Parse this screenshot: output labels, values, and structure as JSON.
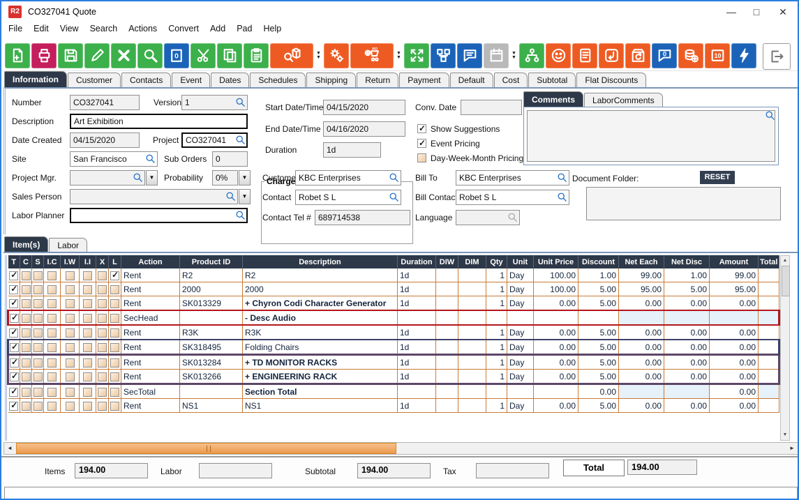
{
  "window": {
    "title": "CO327041 Quote",
    "badge": "R2",
    "minimize": "—",
    "maximize": "□",
    "close": "✕"
  },
  "menu": {
    "items": [
      "File",
      "Edit",
      "View",
      "Search",
      "Actions",
      "Convert",
      "Add",
      "Pad",
      "Help"
    ]
  },
  "toolbar": {
    "buttons": [
      {
        "name": "new-document-icon",
        "color": "green"
      },
      {
        "name": "print-icon",
        "color": "crimson"
      },
      {
        "name": "save-icon",
        "color": "green"
      },
      {
        "name": "edit-pencil-icon",
        "color": "green"
      },
      {
        "name": "delete-x-icon",
        "color": "green"
      },
      {
        "name": "search-icon",
        "color": "green"
      },
      {
        "name": "duplicate-zero-icon",
        "color": "blue",
        "glyph": "0"
      },
      {
        "name": "cut-icon",
        "color": "green"
      },
      {
        "name": "copy-icon",
        "color": "green"
      },
      {
        "name": "paste-icon",
        "color": "green"
      },
      {
        "name": "product-search-icon",
        "color": "orange",
        "wide": true,
        "dropdown": true
      },
      {
        "name": "gears-icon",
        "color": "orange"
      },
      {
        "name": "add-po-cart-icon",
        "color": "orange",
        "wide": true,
        "dropdown": true,
        "glyph": "PO"
      },
      {
        "name": "expand-icon",
        "color": "green"
      },
      {
        "name": "workflow-icon",
        "color": "blue"
      },
      {
        "name": "comment-icon",
        "color": "blue"
      },
      {
        "name": "calendar-icon",
        "color": "gray",
        "dropdown": true
      },
      {
        "name": "org-tree-icon",
        "color": "green"
      },
      {
        "name": "smiley-icon",
        "color": "orange"
      },
      {
        "name": "notes-scroll-icon",
        "color": "orange"
      },
      {
        "name": "return-arrow-icon",
        "color": "orange"
      },
      {
        "name": "box-return-icon",
        "color": "orange"
      },
      {
        "name": "chat-zero-icon",
        "color": "blue",
        "glyph": "0"
      },
      {
        "name": "coins-add-icon",
        "color": "orange"
      },
      {
        "name": "vault-icon",
        "color": "orange",
        "glyph": "10"
      },
      {
        "name": "lightning-icon",
        "color": "blue"
      }
    ],
    "exit": {
      "name": "exit-icon"
    }
  },
  "tabs": {
    "items": [
      "Information",
      "Customer",
      "Contacts",
      "Event",
      "Dates",
      "Schedules",
      "Shipping",
      "Return",
      "Payment",
      "Default",
      "Cost",
      "Subtotal",
      "Flat Discounts"
    ],
    "selected": "Information"
  },
  "form": {
    "number": {
      "label": "Number",
      "value": "CO327041"
    },
    "version": {
      "label": "Version",
      "value": "1"
    },
    "description": {
      "label": "Description",
      "value": "Art Exhibition"
    },
    "date_created": {
      "label": "Date Created",
      "value": "04/15/2020"
    },
    "project": {
      "label": "Project",
      "value": "CO327041"
    },
    "site": {
      "label": "Site",
      "value": "San Francisco"
    },
    "sub_orders": {
      "label": "Sub Orders",
      "value": "0"
    },
    "project_mgr": {
      "label": "Project Mgr.",
      "value": ""
    },
    "probability": {
      "label": "Probability",
      "value": "0%"
    },
    "sales_person": {
      "label": "Sales Person",
      "value": ""
    },
    "labor_planner": {
      "label": "Labor Planner",
      "value": ""
    },
    "charge_duration": {
      "title": "Charge Duration",
      "start": {
        "label": "Start Date/Time",
        "value": "04/15/2020"
      },
      "end": {
        "label": "End Date/Time",
        "value": "04/16/2020"
      },
      "duration": {
        "label": "Duration",
        "value": "1d"
      }
    },
    "conv_date": {
      "label": "Conv. Date",
      "value": ""
    },
    "checkboxes": [
      {
        "label": "Show Suggestions",
        "checked": true
      },
      {
        "label": "Event Pricing",
        "checked": true
      },
      {
        "label": "Day-Week-Month Pricing",
        "checked": false
      }
    ],
    "customer": {
      "label": "Customer",
      "value": "KBC Enterprises"
    },
    "bill_to": {
      "label": "Bill To",
      "value": "KBC Enterprises"
    },
    "contact": {
      "label": "Contact",
      "value": "Robet S L"
    },
    "bill_contact": {
      "label": "Bill Contact",
      "value": "Robet S L"
    },
    "contact_tel": {
      "label": "Contact Tel #",
      "value": "689714538"
    },
    "language": {
      "label": "Language",
      "value": ""
    }
  },
  "comments": {
    "tabs": [
      "Comments",
      "LaborComments"
    ],
    "selected": "Comments",
    "value": ""
  },
  "document_folder": {
    "label": "Document Folder:",
    "reset_label": "RESET",
    "value": ""
  },
  "items_section": {
    "tabs": [
      "Item(s)",
      "Labor"
    ],
    "selected": "Item(s)"
  },
  "table": {
    "checkbox_columns": [
      "T",
      "C",
      "S",
      "I.C",
      "I.W",
      "I.I",
      "X",
      "L"
    ],
    "columns": [
      "Action",
      "Product ID",
      "Description",
      "Duration",
      "DIW",
      "DIM",
      "Qty",
      "Unit",
      "Unit Price",
      "Discount",
      "Net Each",
      "Net Disc",
      "Amount",
      "Total"
    ],
    "rows": [
      {
        "checks": [
          1,
          0,
          0,
          0,
          0,
          0,
          0,
          1
        ],
        "action": "Rent",
        "product": "R2",
        "desc": "R2",
        "bold": false,
        "duration": "1d",
        "diw": "",
        "dim": "",
        "qty": "1",
        "unit": "Day",
        "price": "100.00",
        "discount": "1.00",
        "net_each": "99.00",
        "net_disc": "1.00",
        "amount": "99.00",
        "total": "",
        "border": "",
        "muted": []
      },
      {
        "checks": [
          1,
          0,
          0,
          0,
          0,
          0,
          0,
          0
        ],
        "action": "Rent",
        "product": "2000",
        "desc": "2000",
        "bold": false,
        "duration": "1d",
        "diw": "",
        "dim": "",
        "qty": "1",
        "unit": "Day",
        "price": "100.00",
        "discount": "5.00",
        "net_each": "95.00",
        "net_disc": "5.00",
        "amount": "95.00",
        "total": "",
        "border": "",
        "muted": []
      },
      {
        "checks": [
          1,
          0,
          0,
          0,
          0,
          0,
          0,
          0
        ],
        "action": "Rent",
        "product": "SK013329",
        "desc": "+  Chyron Codi Character Generator",
        "bold": true,
        "duration": "1d",
        "diw": "",
        "dim": "",
        "qty": "1",
        "unit": "Day",
        "price": "0.00",
        "discount": "5.00",
        "net_each": "0.00",
        "net_disc": "0.00",
        "amount": "0.00",
        "total": "",
        "border": "",
        "muted": []
      },
      {
        "checks": [
          1,
          0,
          0,
          0,
          0,
          0,
          0,
          0
        ],
        "action": "SecHead",
        "product": "",
        "desc": "-  Desc Audio",
        "bold": true,
        "duration": "",
        "diw": "",
        "dim": "",
        "qty": "",
        "unit": "",
        "price": "",
        "discount": "",
        "net_each": "",
        "net_disc": "",
        "amount": "",
        "total": "",
        "border": "red",
        "muted": [
          "net_each",
          "net_disc",
          "amount",
          "total"
        ]
      },
      {
        "checks": [
          1,
          0,
          0,
          0,
          0,
          0,
          0,
          0
        ],
        "action": "Rent",
        "product": "R3K",
        "desc": "R3K",
        "bold": false,
        "duration": "1d",
        "diw": "",
        "dim": "",
        "qty": "1",
        "unit": "Day",
        "price": "0.00",
        "discount": "5.00",
        "net_each": "0.00",
        "net_disc": "0.00",
        "amount": "0.00",
        "total": "",
        "border": "",
        "muted": []
      },
      {
        "checks": [
          1,
          0,
          0,
          0,
          0,
          0,
          0,
          0
        ],
        "action": "Rent",
        "product": "SK318495",
        "desc": "Folding Chairs",
        "bold": false,
        "duration": "1d",
        "diw": "",
        "dim": "",
        "qty": "1",
        "unit": "Day",
        "price": "0.00",
        "discount": "5.00",
        "net_each": "0.00",
        "net_disc": "0.00",
        "amount": "0.00",
        "total": "",
        "border": "navy",
        "muted": []
      },
      {
        "checks": [
          1,
          0,
          0,
          0,
          0,
          0,
          0,
          0
        ],
        "action": "Rent",
        "product": "SK013284",
        "desc": "+  TD MONITOR RACKS",
        "bold": true,
        "duration": "1d",
        "diw": "",
        "dim": "",
        "qty": "1",
        "unit": "Day",
        "price": "0.00",
        "discount": "5.00",
        "net_each": "0.00",
        "net_disc": "0.00",
        "amount": "0.00",
        "total": "",
        "border": "plumTop",
        "muted": []
      },
      {
        "checks": [
          1,
          0,
          0,
          0,
          0,
          0,
          0,
          0
        ],
        "action": "Rent",
        "product": "SK013266",
        "desc": "+  ENGINEERING RACK",
        "bold": true,
        "duration": "1d",
        "diw": "",
        "dim": "",
        "qty": "1",
        "unit": "Day",
        "price": "0.00",
        "discount": "5.00",
        "net_each": "0.00",
        "net_disc": "0.00",
        "amount": "0.00",
        "total": "",
        "border": "plumBottom",
        "muted": []
      },
      {
        "checks": [
          1,
          0,
          0,
          0,
          0,
          0,
          0,
          0
        ],
        "action": "SecTotal",
        "product": "",
        "desc": "Section Total",
        "bold": true,
        "duration": "",
        "diw": "",
        "dim": "",
        "qty": "",
        "unit": "",
        "price": "",
        "discount": "0.00",
        "net_each": "",
        "net_disc": "",
        "amount": "0.00",
        "total": "",
        "border": "",
        "muted": [
          "net_each",
          "net_disc",
          "total"
        ]
      },
      {
        "checks": [
          1,
          0,
          0,
          0,
          0,
          0,
          0,
          0
        ],
        "action": "Rent",
        "product": "NS1",
        "desc": "NS1",
        "bold": false,
        "duration": "1d",
        "diw": "",
        "dim": "",
        "qty": "1",
        "unit": "Day",
        "price": "0.00",
        "discount": "5.00",
        "net_each": "0.00",
        "net_disc": "0.00",
        "amount": "0.00",
        "total": "",
        "border": "",
        "muted": []
      }
    ]
  },
  "totals": {
    "items_label": "Items",
    "items": "194.00",
    "labor_label": "Labor",
    "labor": "",
    "subtotal_label": "Subtotal",
    "subtotal": "194.00",
    "tax_label": "Tax",
    "tax": "",
    "total_label": "Total",
    "total": "194.00"
  },
  "colors": {
    "green": "#3cb04b",
    "crimson": "#c41e5d",
    "blue": "#1b63b8",
    "orange": "#ee5b22",
    "header_navy": "#2d3848",
    "grid_line": "#c97a36",
    "row_red": "#b3161b",
    "row_navy": "#3c4069",
    "row_plum": "#5d4666",
    "scroll_orange": "#eb9a4e"
  }
}
